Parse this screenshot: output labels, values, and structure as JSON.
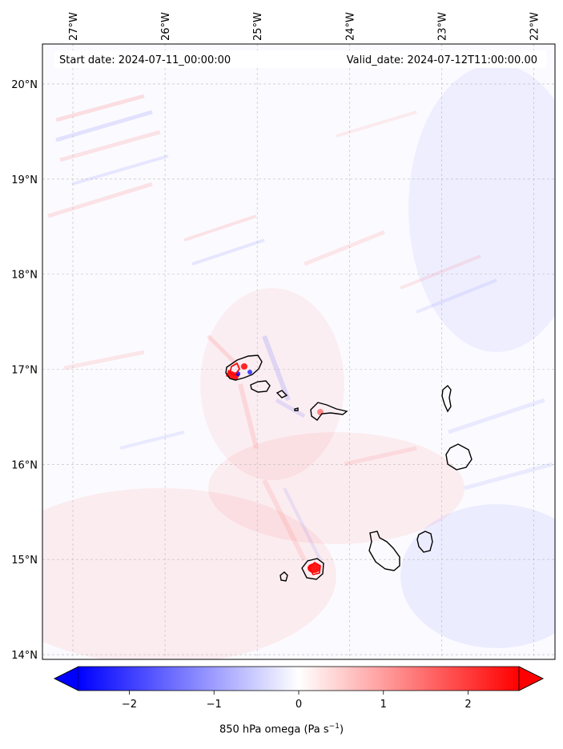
{
  "header": {
    "start_text": "Start date: 2024-07-11_00:00:00",
    "valid_text": "Valid_date: 2024-07-12T11:00:00.00"
  },
  "map": {
    "lon_range": [
      -27.33,
      -21.77
    ],
    "lat_range": [
      13.95,
      20.42
    ],
    "lon_ticks": [
      {
        "value": -27,
        "label": "27°W"
      },
      {
        "value": -26,
        "label": "26°W"
      },
      {
        "value": -25,
        "label": "25°W"
      },
      {
        "value": -24,
        "label": "24°W"
      },
      {
        "value": -23,
        "label": "23°W"
      },
      {
        "value": -22,
        "label": "22°W"
      }
    ],
    "lat_ticks": [
      {
        "value": 20,
        "label": "20°N"
      },
      {
        "value": 19,
        "label": "19°N"
      },
      {
        "value": 18,
        "label": "18°N"
      },
      {
        "value": 17,
        "label": "17°N"
      },
      {
        "value": 16,
        "label": "16°N"
      },
      {
        "value": 15,
        "label": "15°N"
      },
      {
        "value": 14,
        "label": "14°N"
      }
    ],
    "gridlines": true,
    "field_colors": {
      "negative": "#0000ff",
      "neutral": "#ffffff",
      "positive": "#ff0000"
    }
  },
  "colorbar": {
    "min": -2.6,
    "max": 2.6,
    "ticks": [
      {
        "value": -2,
        "label": "−2"
      },
      {
        "value": -1,
        "label": "−1"
      },
      {
        "value": 0,
        "label": "0"
      },
      {
        "value": 1,
        "label": "1"
      },
      {
        "value": 2,
        "label": "2"
      }
    ],
    "label_main": "850 hPa omega (Pa s",
    "label_sup": "−1",
    "label_end": ")",
    "extend": "both",
    "orientation": "horizontal"
  }
}
